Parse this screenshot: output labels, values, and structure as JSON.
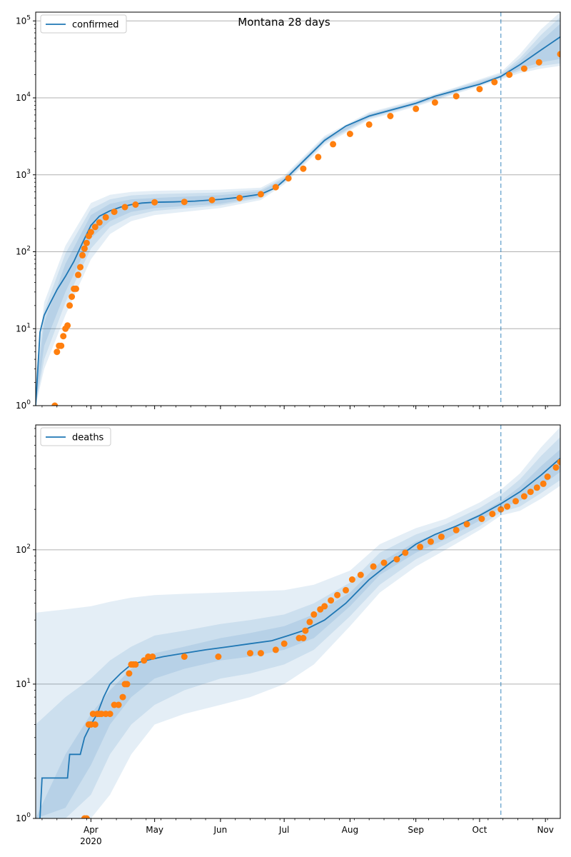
{
  "figure": {
    "title": "Montana 28 days"
  },
  "colors": {
    "model": "#1f77b4",
    "observed": "#ff7f0e",
    "band": "#1f77b4",
    "grid": "#b0b0b0",
    "vline": "#1f77b4"
  },
  "chart_data": [
    {
      "type": "line",
      "panel": "confirmed",
      "yscale": "log",
      "xlim": [
        "2020-03-06",
        "2020-11-08"
      ],
      "ylim": [
        1,
        130000
      ],
      "forecast_start": "2020-10-11",
      "grid": "horizontal-major",
      "legend_placement": "top-left",
      "yticks": [
        {
          "value": 1,
          "base": "10",
          "exp": "0"
        },
        {
          "value": 10,
          "base": "10",
          "exp": "1"
        },
        {
          "value": 100,
          "base": "10",
          "exp": "2"
        },
        {
          "value": 1000,
          "base": "10",
          "exp": "3"
        },
        {
          "value": 10000,
          "base": "10",
          "exp": "4"
        },
        {
          "value": 100000,
          "base": "10",
          "exp": "5"
        }
      ],
      "series": [
        {
          "name": "confirmed",
          "kind": "model-line",
          "x": [
            "2020-03-06",
            "2020-03-08",
            "2020-03-10",
            "2020-03-13",
            "2020-03-16",
            "2020-03-20",
            "2020-03-24",
            "2020-03-28",
            "2020-04-01",
            "2020-04-05",
            "2020-04-10",
            "2020-04-15",
            "2020-04-20",
            "2020-04-25",
            "2020-05-01",
            "2020-05-10",
            "2020-05-20",
            "2020-06-01",
            "2020-06-10",
            "2020-06-20",
            "2020-06-27",
            "2020-07-01",
            "2020-07-10",
            "2020-07-20",
            "2020-07-30",
            "2020-08-10",
            "2020-08-20",
            "2020-09-01",
            "2020-09-10",
            "2020-09-20",
            "2020-10-01",
            "2020-10-11",
            "2020-10-20",
            "2020-10-30",
            "2020-11-08"
          ],
          "y": [
            1,
            9,
            15,
            22,
            32,
            48,
            75,
            130,
            220,
            290,
            340,
            380,
            410,
            430,
            440,
            445,
            455,
            480,
            510,
            560,
            680,
            850,
            1500,
            2800,
            4300,
            5800,
            6900,
            8500,
            10500,
            12500,
            15000,
            19000,
            27000,
            42000,
            62000
          ]
        },
        {
          "name": "",
          "kind": "model-band",
          "x": [
            "2020-03-06",
            "2020-03-10",
            "2020-03-20",
            "2020-04-01",
            "2020-04-10",
            "2020-04-20",
            "2020-05-01",
            "2020-06-01",
            "2020-06-20",
            "2020-07-01",
            "2020-07-20",
            "2020-08-10",
            "2020-09-01",
            "2020-09-20",
            "2020-10-11",
            "2020-10-20",
            "2020-10-30",
            "2020-11-08"
          ],
          "bands": [
            {
              "lower": [
                1,
                6,
                30,
                150,
                250,
                330,
                370,
                420,
                520,
                820,
                2700,
                5600,
                8200,
                12000,
                18500,
                24000,
                29000,
                32000
              ],
              "upper": [
                1.5,
                12,
                70,
                300,
                420,
                480,
                500,
                545,
                610,
                890,
                2950,
                6050,
                8800,
                13000,
                19500,
                30000,
                55000,
                92000
              ]
            },
            {
              "lower": [
                1,
                4,
                22,
                110,
                210,
                290,
                340,
                400,
                500,
                790,
                2600,
                5400,
                8000,
                11700,
                18000,
                22500,
                26000,
                28000
              ],
              "upper": [
                1.9,
                17,
                95,
                360,
                480,
                540,
                560,
                590,
                640,
                930,
                3050,
                6250,
                9100,
                13400,
                20500,
                33000,
                66000,
                112000
              ]
            },
            {
              "lower": [
                1,
                3,
                15,
                80,
                170,
                250,
                300,
                370,
                470,
                750,
                2450,
                5200,
                7700,
                11300,
                17300,
                21000,
                24000,
                26000
              ],
              "upper": [
                2.5,
                22,
                120,
                430,
                550,
                600,
                620,
                640,
                680,
                980,
                3200,
                6500,
                9400,
                13800,
                21500,
                37000,
                78000,
                130000
              ]
            }
          ]
        },
        {
          "name": "",
          "kind": "observed-points",
          "x": [
            "2020-03-15",
            "2020-03-16",
            "2020-03-17",
            "2020-03-18",
            "2020-03-19",
            "2020-03-20",
            "2020-03-21",
            "2020-03-22",
            "2020-03-23",
            "2020-03-24",
            "2020-03-25",
            "2020-03-26",
            "2020-03-27",
            "2020-03-28",
            "2020-03-29",
            "2020-03-30",
            "2020-03-31",
            "2020-04-01",
            "2020-04-03",
            "2020-04-05",
            "2020-04-08",
            "2020-04-12",
            "2020-04-17",
            "2020-04-22",
            "2020-05-01",
            "2020-05-15",
            "2020-05-28",
            "2020-06-10",
            "2020-06-20",
            "2020-06-27",
            "2020-07-03",
            "2020-07-10",
            "2020-07-17",
            "2020-07-24",
            "2020-08-01",
            "2020-08-10",
            "2020-08-20",
            "2020-09-01",
            "2020-09-10",
            "2020-09-20",
            "2020-10-01",
            "2020-10-08",
            "2020-10-15",
            "2020-10-22",
            "2020-10-29",
            "2020-11-08"
          ],
          "y": [
            1,
            5,
            6,
            6,
            8,
            10,
            11,
            20,
            26,
            33,
            33,
            50,
            63,
            90,
            110,
            130,
            160,
            180,
            210,
            240,
            280,
            330,
            380,
            410,
            440,
            445,
            470,
            500,
            560,
            690,
            900,
            1200,
            1700,
            2500,
            3400,
            4500,
            5800,
            7200,
            8700,
            10500,
            13000,
            16000,
            20000,
            24000,
            29000,
            37000
          ]
        }
      ]
    },
    {
      "type": "line",
      "panel": "deaths",
      "yscale": "log",
      "xlim": [
        "2020-03-06",
        "2020-11-08"
      ],
      "ylim": [
        1,
        850
      ],
      "forecast_start": "2020-10-11",
      "grid": "horizontal-major",
      "legend_placement": "top-left",
      "yticks": [
        {
          "value": 1,
          "base": "10",
          "exp": "0"
        },
        {
          "value": 10,
          "base": "10",
          "exp": "1"
        },
        {
          "value": 100,
          "base": "10",
          "exp": "2"
        }
      ],
      "xticks": [
        {
          "date": "2020-04-01",
          "label": "Apr",
          "sub": "2020"
        },
        {
          "date": "2020-05-01",
          "label": "May",
          "sub": ""
        },
        {
          "date": "2020-06-01",
          "label": "Jun",
          "sub": ""
        },
        {
          "date": "2020-07-01",
          "label": "Jul",
          "sub": ""
        },
        {
          "date": "2020-08-01",
          "label": "Aug",
          "sub": ""
        },
        {
          "date": "2020-09-01",
          "label": "Sep",
          "sub": ""
        },
        {
          "date": "2020-10-01",
          "label": "Oct",
          "sub": ""
        },
        {
          "date": "2020-11-01",
          "label": "Nov",
          "sub": ""
        }
      ],
      "series": [
        {
          "name": "deaths",
          "kind": "model-line",
          "x": [
            "2020-03-08",
            "2020-03-09",
            "2020-03-21",
            "2020-03-22",
            "2020-03-27",
            "2020-03-29",
            "2020-04-01",
            "2020-04-04",
            "2020-04-07",
            "2020-04-10",
            "2020-04-15",
            "2020-04-20",
            "2020-04-27",
            "2020-05-05",
            "2020-05-15",
            "2020-05-25",
            "2020-06-05",
            "2020-06-15",
            "2020-06-25",
            "2020-07-03",
            "2020-07-10",
            "2020-07-20",
            "2020-07-30",
            "2020-08-10",
            "2020-08-20",
            "2020-09-01",
            "2020-09-10",
            "2020-09-20",
            "2020-10-01",
            "2020-10-11",
            "2020-10-20",
            "2020-10-30",
            "2020-11-08"
          ],
          "y": [
            1,
            2,
            2,
            3,
            3,
            4,
            5,
            6,
            8,
            10,
            12,
            14,
            15,
            16,
            17,
            18,
            19,
            20,
            21,
            23,
            25,
            30,
            40,
            60,
            80,
            110,
            130,
            150,
            180,
            220,
            270,
            360,
            480
          ]
        },
        {
          "name": "",
          "kind": "model-band",
          "x": [
            "2020-03-06",
            "2020-03-20",
            "2020-04-01",
            "2020-04-10",
            "2020-04-20",
            "2020-05-01",
            "2020-05-15",
            "2020-06-01",
            "2020-06-15",
            "2020-07-01",
            "2020-07-15",
            "2020-08-01",
            "2020-08-15",
            "2020-09-01",
            "2020-09-15",
            "2020-10-01",
            "2020-10-11",
            "2020-10-20",
            "2020-10-30",
            "2020-11-08"
          ],
          "bands": [
            {
              "lower": [
                1,
                1.2,
                2.5,
                5,
                8,
                11,
                13,
                15,
                16,
                18,
                22,
                38,
                65,
                95,
                120,
                165,
                205,
                230,
                300,
                380
              ],
              "upper": [
                1,
                3,
                6,
                9,
                13,
                17,
                19,
                22,
                24,
                27,
                33,
                48,
                80,
                115,
                140,
                185,
                230,
                295,
                420,
                560
              ]
            },
            {
              "lower": [
                1,
                1,
                1.5,
                3,
                5,
                7,
                9,
                11,
                12,
                14,
                18,
                32,
                55,
                85,
                110,
                150,
                190,
                210,
                265,
                330
              ],
              "upper": [
                5,
                8,
                11,
                15,
                19,
                23,
                25,
                28,
                30,
                33,
                40,
                57,
                95,
                130,
                155,
                205,
                255,
                335,
                500,
                690
              ]
            },
            {
              "lower": [
                1,
                1,
                1,
                1.5,
                3,
                5,
                6,
                7,
                8,
                10,
                14,
                27,
                48,
                75,
                100,
                140,
                180,
                195,
                240,
                300
              ],
              "upper": [
                34,
                36,
                38,
                41,
                44,
                46,
                47,
                48,
                49,
                50,
                55,
                70,
                110,
                145,
                170,
                225,
                280,
                370,
                580,
                820
              ]
            }
          ]
        },
        {
          "name": "",
          "kind": "observed-points",
          "x": [
            "2020-03-29",
            "2020-03-30",
            "2020-03-31",
            "2020-04-01",
            "2020-04-02",
            "2020-04-03",
            "2020-04-04",
            "2020-04-05",
            "2020-04-06",
            "2020-04-08",
            "2020-04-10",
            "2020-04-12",
            "2020-04-14",
            "2020-04-16",
            "2020-04-17",
            "2020-04-18",
            "2020-04-19",
            "2020-04-20",
            "2020-04-21",
            "2020-04-22",
            "2020-04-26",
            "2020-04-28",
            "2020-04-30",
            "2020-05-15",
            "2020-05-31",
            "2020-06-15",
            "2020-06-20",
            "2020-06-27",
            "2020-07-01",
            "2020-07-08",
            "2020-07-10",
            "2020-07-11",
            "2020-07-13",
            "2020-07-15",
            "2020-07-18",
            "2020-07-20",
            "2020-07-23",
            "2020-07-26",
            "2020-07-30",
            "2020-08-02",
            "2020-08-06",
            "2020-08-12",
            "2020-08-17",
            "2020-08-23",
            "2020-08-27",
            "2020-09-03",
            "2020-09-08",
            "2020-09-13",
            "2020-09-20",
            "2020-09-25",
            "2020-10-02",
            "2020-10-07",
            "2020-10-11",
            "2020-10-14",
            "2020-10-18",
            "2020-10-22",
            "2020-10-25",
            "2020-10-28",
            "2020-10-31",
            "2020-11-02",
            "2020-11-06",
            "2020-11-08"
          ],
          "y": [
            1,
            1,
            5,
            5,
            6,
            5,
            6,
            6,
            6,
            6,
            6,
            7,
            7,
            8,
            10,
            10,
            12,
            14,
            14,
            14,
            15,
            16,
            16,
            16,
            16,
            17,
            17,
            18,
            20,
            22,
            22,
            25,
            29,
            33,
            36,
            38,
            42,
            46,
            50,
            60,
            65,
            75,
            80,
            85,
            95,
            105,
            115,
            125,
            140,
            155,
            170,
            185,
            200,
            210,
            230,
            250,
            270,
            290,
            310,
            350,
            410,
            450
          ]
        }
      ]
    }
  ],
  "legend": {
    "confirmed_label": "confirmed",
    "deaths_label": "deaths"
  }
}
